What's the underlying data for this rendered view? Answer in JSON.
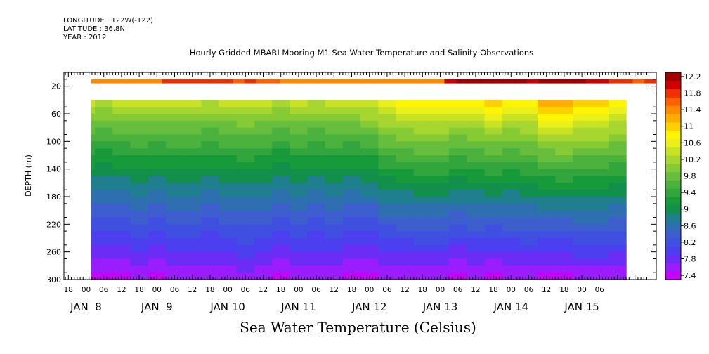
{
  "meta": {
    "longitude": "LONGITUDE : 122W(-122)",
    "latitude": "LATITUDE : 36.8N",
    "year": "YEAR : 2012"
  },
  "title": "Hourly Gridded MBARI Mooring M1 Sea Water Temperature and Salinity Observations",
  "bottom_title": "Sea Water Temperature (Celsius)",
  "chart_data": {
    "type": "heatmap",
    "title": "Hourly Gridded MBARI Mooring M1 Sea Water Temperature and Salinity Observations",
    "xlabel": "",
    "ylabel": "DEPTH (m)",
    "colorbar_label": "Sea Water Temperature (Celsius)",
    "ylim": [
      300,
      0
    ],
    "y_ticks": [
      20,
      60,
      100,
      140,
      180,
      220,
      260,
      300
    ],
    "x_range_hours": [
      0,
      180
    ],
    "x_hour_ticks": [
      "18",
      "00",
      "06",
      "12",
      "18",
      "00",
      "06",
      "12",
      "18",
      "00",
      "06",
      "12",
      "18",
      "00",
      "06",
      "12",
      "18",
      "00",
      "06",
      "12",
      "18",
      "00",
      "06",
      "12",
      "18",
      "00",
      "06",
      "12",
      "18",
      "00",
      "06"
    ],
    "x_day_labels": [
      {
        "label": "JAN  8",
        "hour": 0
      },
      {
        "label": "JAN  9",
        "hour": 24
      },
      {
        "label": "JAN 10",
        "hour": 48
      },
      {
        "label": "JAN 11",
        "hour": 72
      },
      {
        "label": "JAN 12",
        "hour": 96
      },
      {
        "label": "JAN 13",
        "hour": 120
      },
      {
        "label": "JAN 14",
        "hour": 144
      },
      {
        "label": "JAN 15",
        "hour": 168
      }
    ],
    "colorbar_levels": [
      7.4,
      7.6,
      7.8,
      8.0,
      8.2,
      8.4,
      8.6,
      8.8,
      9.0,
      9.2,
      9.4,
      9.6,
      9.8,
      10.0,
      10.2,
      10.4,
      10.6,
      10.8,
      11.0,
      11.2,
      11.4,
      11.6,
      11.8,
      12.0,
      12.2
    ],
    "colorbar_tick_labels": [
      "7.4",
      "7.8",
      "8.2",
      "8.6",
      "9",
      "9.4",
      "9.8",
      "10.2",
      "10.6",
      "11",
      "11.4",
      "11.8",
      "12.2"
    ],
    "colorbar_colors": [
      "#c800ff",
      "#9a1cff",
      "#6b2cf6",
      "#4c3ff0",
      "#3f4fe0",
      "#3c5fcd",
      "#2e6fb0",
      "#1f7f8e",
      "#128f4b",
      "#179a3a",
      "#32a53c",
      "#4bb23e",
      "#66be3c",
      "#86ca34",
      "#a8d630",
      "#c9e322",
      "#ecf01a",
      "#fff500",
      "#ffd000",
      "#ffae00",
      "#ff8a00",
      "#ff6000",
      "#f03000",
      "#d00000",
      "#a00000"
    ],
    "surface_layer": {
      "depth_range": [
        10,
        16
      ],
      "values": [
        11.4,
        11.4,
        11.4,
        11.4,
        11.4,
        11.4,
        11.8,
        11.8,
        11.8,
        11.8,
        11.8,
        11.8,
        11.6,
        11.8,
        11.6,
        11.6,
        11.4,
        11.4,
        11.4,
        11.4,
        11.4,
        11.4,
        11.4,
        11.4,
        11.4,
        11.4,
        11.4,
        11.4,
        11.4,
        11.4,
        12.0,
        12.2,
        12.2,
        12.2,
        12.2,
        12.2,
        12.2,
        12.0,
        12.2,
        12.2,
        12.2,
        12.2,
        12.0,
        12.0,
        11.8,
        11.8,
        11.6,
        11.8
      ]
    },
    "depth_levels_m": [
      40,
      50,
      60,
      70,
      80,
      90,
      100,
      110,
      120,
      130,
      140,
      150,
      160,
      170,
      180,
      190,
      200,
      210,
      220,
      230,
      240,
      250,
      260,
      270,
      280,
      290,
      300
    ],
    "time_hours": [
      0,
      6,
      12,
      18,
      24,
      30,
      36,
      42,
      48,
      54,
      60,
      66,
      72,
      78,
      84,
      90,
      96,
      102,
      108,
      114,
      120,
      126,
      132,
      138,
      144,
      150,
      156,
      162,
      168,
      174,
      180
    ],
    "surface_temperature_by_time": [
      10.6,
      10.5,
      10.6,
      10.6,
      10.6,
      10.6,
      10.6,
      10.5,
      10.6,
      10.6,
      10.6,
      10.5,
      10.6,
      10.5,
      10.6,
      10.6,
      10.7,
      10.9,
      11.0,
      11.1,
      11.1,
      11.0,
      11.0,
      11.2,
      11.0,
      11.1,
      11.4,
      11.5,
      11.3,
      11.3,
      11.1
    ],
    "bottom_temperature_by_time": [
      7.5,
      7.5,
      7.5,
      7.6,
      7.5,
      7.6,
      7.6,
      7.6,
      7.6,
      7.7,
      7.6,
      7.5,
      7.6,
      7.6,
      7.6,
      7.5,
      7.5,
      7.6,
      7.6,
      7.6,
      7.6,
      7.5,
      7.6,
      7.5,
      7.6,
      7.6,
      7.5,
      7.5,
      7.6,
      7.6,
      7.6
    ]
  }
}
